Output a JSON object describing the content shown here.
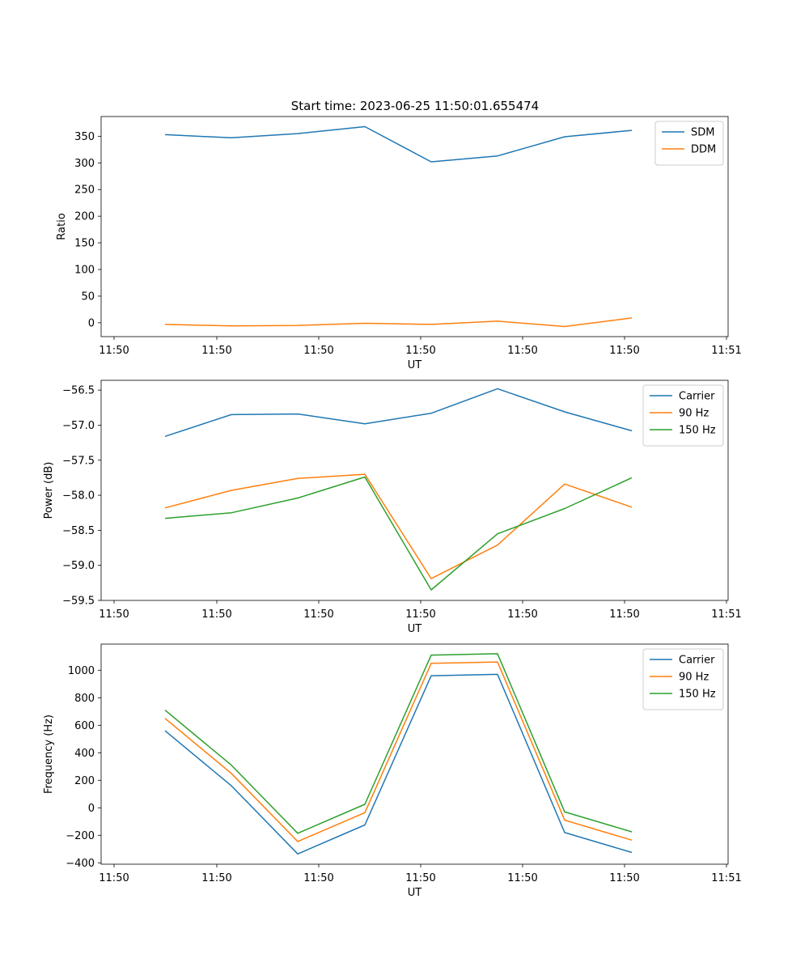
{
  "title": "Start time: 2023-06-25 11:50:01.655474",
  "chart_data": [
    {
      "type": "line",
      "title": "Start time: 2023-06-25 11:50:01.655474",
      "xlabel": "UT",
      "ylabel": "Ratio",
      "x_tick_labels": [
        "11:50",
        "11:50",
        "11:50",
        "11:50",
        "11:50",
        "11:50",
        "11:51"
      ],
      "y_ticks": [
        0,
        50,
        100,
        150,
        200,
        250,
        300,
        350
      ],
      "ylim": [
        -26,
        387
      ],
      "legend_position": "top-right",
      "grid": false,
      "series": [
        {
          "name": "SDM",
          "color": "#1f77b4",
          "values": [
            353,
            347,
            355,
            368,
            302,
            313,
            349,
            361
          ]
        },
        {
          "name": "DDM",
          "color": "#ff7f0e",
          "values": [
            -3,
            -6,
            -5,
            -1,
            -3,
            3,
            -7,
            9
          ]
        }
      ]
    },
    {
      "type": "line",
      "xlabel": "UT",
      "ylabel": "Power (dB)",
      "x_tick_labels": [
        "11:50",
        "11:50",
        "11:50",
        "11:50",
        "11:50",
        "11:50",
        "11:51"
      ],
      "y_ticks": [
        -59.5,
        -59.0,
        -58.5,
        -58.0,
        -57.5,
        -57.0,
        -56.5
      ],
      "y_tick_labels": [
        "−59.5",
        "−59.0",
        "−58.5",
        "−58.0",
        "−57.5",
        "−57.0",
        "−56.5"
      ],
      "ylim": [
        -59.5,
        -56.36
      ],
      "legend_position": "top-right",
      "grid": false,
      "series": [
        {
          "name": "Carrier",
          "color": "#1f77b4",
          "values": [
            -57.16,
            -56.85,
            -56.84,
            -56.98,
            -56.83,
            -56.48,
            -56.81,
            -57.08
          ]
        },
        {
          "name": "90 Hz",
          "color": "#ff7f0e",
          "values": [
            -58.18,
            -57.93,
            -57.76,
            -57.7,
            -59.19,
            -58.71,
            -57.84,
            -58.17
          ]
        },
        {
          "name": "150 Hz",
          "color": "#2ca02c",
          "values": [
            -58.33,
            -58.25,
            -58.04,
            -57.74,
            -59.35,
            -58.55,
            -58.19,
            -57.75
          ]
        }
      ]
    },
    {
      "type": "line",
      "xlabel": "UT",
      "ylabel": "Frequency (Hz)",
      "x_tick_labels": [
        "11:50",
        "11:50",
        "11:50",
        "11:50",
        "11:50",
        "11:50",
        "11:51"
      ],
      "y_ticks": [
        -400,
        -200,
        0,
        200,
        400,
        600,
        800,
        1000
      ],
      "y_tick_labels": [
        "−400",
        "−200",
        "0",
        "200",
        "400",
        "600",
        "800",
        "1000"
      ],
      "ylim": [
        -410,
        1190
      ],
      "legend_position": "top-right",
      "grid": false,
      "series": [
        {
          "name": "Carrier",
          "color": "#1f77b4",
          "values": [
            560,
            160,
            -335,
            -125,
            960,
            970,
            -180,
            -325
          ]
        },
        {
          "name": "90 Hz",
          "color": "#ff7f0e",
          "values": [
            650,
            250,
            -245,
            -35,
            1050,
            1060,
            -90,
            -235
          ]
        },
        {
          "name": "150 Hz",
          "color": "#2ca02c",
          "values": [
            710,
            310,
            -185,
            25,
            1110,
            1120,
            -30,
            -175
          ]
        }
      ]
    }
  ]
}
